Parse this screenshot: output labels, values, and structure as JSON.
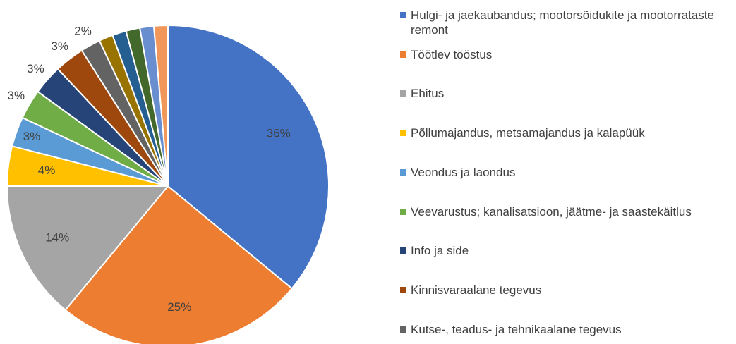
{
  "chart_data": {
    "type": "pie",
    "categories": [
      "Hulgi- ja jaekaubandus; mootorsõidukite ja mootorrataste remont",
      "Töötlev tööstus",
      "Ehitus",
      "Põllumajandus, metsamajandus ja kalapüük",
      "Veondus ja laondus",
      "Veevarustus; kanalisatsioon, jäätme- ja saastekäitlus",
      "Info ja side",
      "Kinnisvaraalane tegevus",
      "Kutse-, teadus- ja tehnikaalane tegevus",
      null,
      null,
      null,
      null,
      null
    ],
    "values": [
      36,
      25,
      14,
      4,
      3,
      3,
      3,
      3,
      2,
      1.4,
      1.4,
      1.4,
      1.4,
      1.4
    ],
    "value_labels": [
      "36%",
      "25%",
      "14%",
      "4%",
      "3%",
      "3%",
      "3%",
      "3%",
      "2%",
      null,
      null,
      null,
      null,
      null
    ],
    "colors": [
      "#4472c4",
      "#ed7d31",
      "#a5a5a5",
      "#ffc000",
      "#5b9bd5",
      "#70ad47",
      "#264478",
      "#9e480e",
      "#636363",
      "#997300",
      "#255e91",
      "#43682b",
      "#698ed0",
      "#f1975a"
    ]
  }
}
